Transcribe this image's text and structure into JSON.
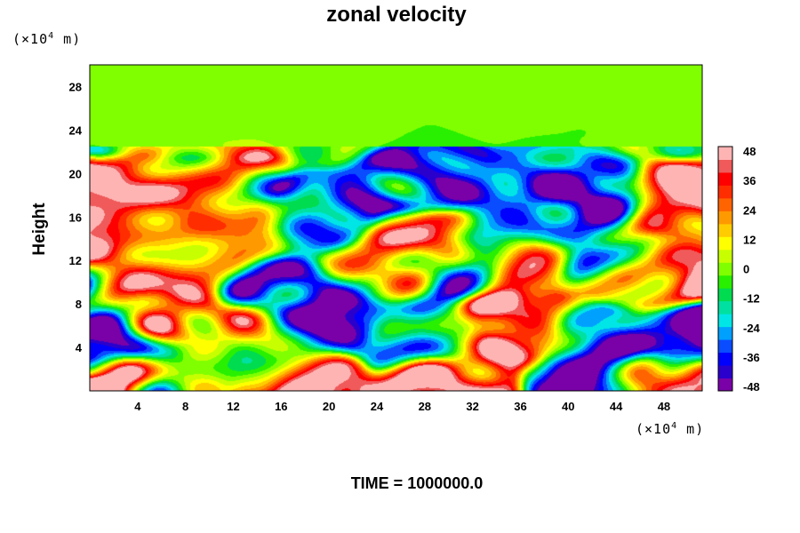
{
  "chart_data": {
    "type": "heatmap",
    "title": "zonal velocity",
    "ylabel": "Height",
    "xlabel": "",
    "y_unit": {
      "prefix": "(×10",
      "exp": "4",
      "suffix": " m)"
    },
    "x_unit": {
      "prefix": "(×10",
      "exp": "4",
      "suffix": " m)"
    },
    "x_ticks": [
      4,
      8,
      12,
      16,
      20,
      24,
      28,
      32,
      36,
      40,
      44,
      48
    ],
    "y_ticks": [
      4,
      8,
      12,
      16,
      20,
      24,
      28
    ],
    "xlim": [
      0,
      51.2
    ],
    "ylim": [
      0,
      30
    ],
    "colorbar": {
      "ticks": [
        48,
        36,
        24,
        12,
        0,
        -12,
        -24,
        -36,
        -48
      ],
      "range": [
        -48,
        48
      ],
      "colors": [
        "#7a00a8",
        "#2a00cc",
        "#0000ff",
        "#0a4cff",
        "#00a0ff",
        "#00e6e6",
        "#00e0a0",
        "#00dc50",
        "#28f000",
        "#80ff00",
        "#c8ff00",
        "#ffff00",
        "#ffcc00",
        "#ff9900",
        "#ff6400",
        "#ff2d00",
        "#ff0000",
        "#f05a5a",
        "#ffb4b4"
      ]
    },
    "field_features": [
      {
        "x": 4,
        "y": 26,
        "u": 0
      },
      {
        "x": 20,
        "y": 25,
        "u": 0
      },
      {
        "x": 36,
        "y": 27,
        "u": 0
      },
      {
        "x": 48,
        "y": 25,
        "u": 0
      },
      {
        "x": 10,
        "y": 20.5,
        "u": 16
      },
      {
        "x": 28,
        "y": 19.5,
        "u": -36
      },
      {
        "x": 40,
        "y": 20.5,
        "u": -24
      },
      {
        "x": 2,
        "y": 17,
        "u": 44
      },
      {
        "x": 6,
        "y": 16,
        "u": 28
      },
      {
        "x": 12,
        "y": 15,
        "u": 20
      },
      {
        "x": 19,
        "y": 16,
        "u": -30
      },
      {
        "x": 28,
        "y": 13.5,
        "u": 44
      },
      {
        "x": 31,
        "y": 12,
        "u": -36
      },
      {
        "x": 37,
        "y": 15.5,
        "u": -30
      },
      {
        "x": 39.5,
        "y": 16.5,
        "u": -52
      },
      {
        "x": 43,
        "y": 17.5,
        "u": -42
      },
      {
        "x": 48,
        "y": 17.5,
        "u": 44
      },
      {
        "x": 36,
        "y": 12.5,
        "u": 36
      },
      {
        "x": 47,
        "y": 10.5,
        "u": 40
      },
      {
        "x": 8,
        "y": 12,
        "u": 16
      },
      {
        "x": 24,
        "y": 11,
        "u": 14
      },
      {
        "x": 16,
        "y": 9,
        "u": -36
      },
      {
        "x": 6,
        "y": 7,
        "u": 38
      },
      {
        "x": 14,
        "y": 5,
        "u": 44
      },
      {
        "x": 20,
        "y": 7,
        "u": -54
      },
      {
        "x": 15,
        "y": 4,
        "u": -46
      },
      {
        "x": 28,
        "y": 5,
        "u": -14
      },
      {
        "x": 36,
        "y": 6,
        "u": 48
      },
      {
        "x": 42,
        "y": 5,
        "u": -36
      },
      {
        "x": 50,
        "y": 5,
        "u": -54
      },
      {
        "x": 1,
        "y": 5,
        "u": -50
      },
      {
        "x": 17,
        "y": 1,
        "u": 52
      },
      {
        "x": 1,
        "y": 0.5,
        "u": 52
      },
      {
        "x": 30,
        "y": 0.5,
        "u": 42
      },
      {
        "x": 42,
        "y": 1,
        "u": -42
      },
      {
        "x": 48,
        "y": 1,
        "u": 34
      },
      {
        "x": 8,
        "y": 2,
        "u": -10
      },
      {
        "x": 44,
        "y": 12,
        "u": -20
      }
    ]
  },
  "time_label": "TIME = 1000000.0"
}
